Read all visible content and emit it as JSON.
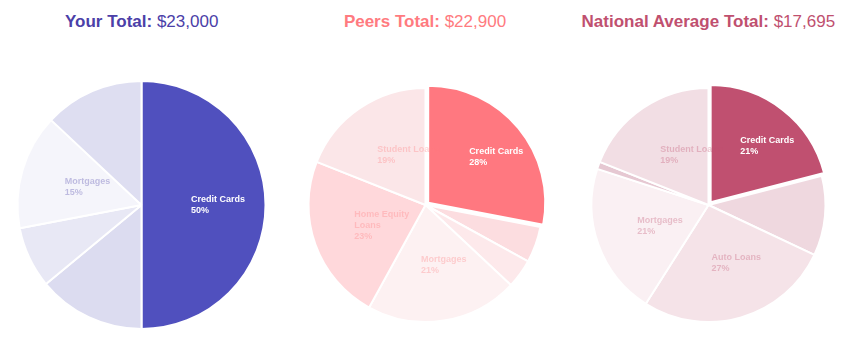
{
  "chart_data": [
    {
      "type": "pie",
      "title": "Your Total: $23,000",
      "color": "#4b40a8",
      "categories": [
        "Credit Cards",
        null,
        null,
        "Mortgages",
        null
      ],
      "values": [
        50,
        14,
        8,
        15,
        13
      ],
      "value_labels": [
        "50%",
        null,
        null,
        "15%",
        null
      ],
      "colors": [
        "#5050be",
        "#dcdcf0",
        "#e8e8f5",
        "#f5f5fb",
        "#dedef1"
      ],
      "data_labels": true
    },
    {
      "type": "pie",
      "title": "Peers Total: $22,900",
      "color": "#ff7b80",
      "categories": [
        "Credit Cards",
        null,
        null,
        "Mortgages",
        "Home Equity Loans",
        "Student Loans"
      ],
      "values": [
        28,
        5,
        4,
        21,
        23,
        19
      ],
      "value_labels": [
        "28%",
        null,
        null,
        "21%",
        "23%",
        "19%"
      ],
      "colors": [
        "#ff7880",
        "#fcdde0",
        "#fde9eb",
        "#fdf1f2",
        "#ffd8db",
        "#fbe6e8"
      ],
      "data_labels": true
    },
    {
      "type": "pie",
      "title": "National Average Total: $17,695",
      "color": "#c0506f",
      "categories": [
        "Credit Cards",
        null,
        "Auto Loans",
        "Mortgages",
        null,
        "Student Loans"
      ],
      "values": [
        21,
        11,
        27,
        21,
        1,
        19
      ],
      "value_labels": [
        "21%",
        null,
        "27%",
        "21%",
        null,
        "19%"
      ],
      "colors": [
        "#c05070",
        "#efd8df",
        "#f5e3e8",
        "#faf0f3",
        "#e6c8d2",
        "#f2dee4"
      ],
      "data_labels": true
    }
  ]
}
